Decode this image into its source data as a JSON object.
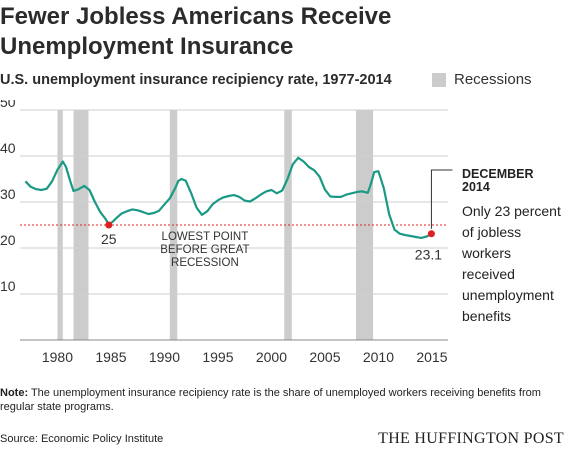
{
  "header": {
    "title": "Fewer Jobless Americans Receive Unemployment Insurance",
    "subtitle": "U.S. unemployment insurance recipiency rate, 1977-2014",
    "legend_label": "Recessions"
  },
  "chart_data": {
    "type": "line",
    "title": "Fewer Jobless Americans Receive Unemployment Insurance",
    "subtitle": "U.S. unemployment insurance recipiency rate, 1977-2014",
    "xlabel": "",
    "ylabel": "",
    "xlim": [
      1976.5,
      2016.5
    ],
    "ylim": [
      0,
      50
    ],
    "yticks": [
      "10",
      "20",
      "30",
      "40",
      "50"
    ],
    "xticks": [
      "1980",
      "1985",
      "1990",
      "1995",
      "2000",
      "2005",
      "2010",
      "2015"
    ],
    "grid": true,
    "reference_line": 25,
    "legend": [
      {
        "name": "Recessions",
        "color": "#cccccc"
      }
    ],
    "recessions": [
      {
        "start": 1980.0,
        "end": 1980.5
      },
      {
        "start": 1981.5,
        "end": 1982.9
      },
      {
        "start": 1990.5,
        "end": 1991.2
      },
      {
        "start": 2001.2,
        "end": 2001.9
      },
      {
        "start": 2007.9,
        "end": 2009.5
      }
    ],
    "series": [
      {
        "color": "#1a9a85",
        "x": [
          1977.0,
          1977.5,
          1978.0,
          1978.5,
          1979.0,
          1979.5,
          1980.0,
          1980.5,
          1980.8,
          1981.2,
          1981.5,
          1982.0,
          1982.5,
          1983.0,
          1983.5,
          1984.0,
          1984.5,
          1984.8,
          1985.2,
          1985.5,
          1986.0,
          1986.5,
          1987.0,
          1987.5,
          1988.0,
          1988.5,
          1989.0,
          1989.5,
          1990.0,
          1990.5,
          1991.0,
          1991.3,
          1991.6,
          1992.0,
          1992.5,
          1993.0,
          1993.5,
          1994.0,
          1994.5,
          1995.0,
          1995.5,
          1996.0,
          1996.5,
          1997.0,
          1997.5,
          1998.0,
          1998.5,
          1999.0,
          1999.5,
          2000.0,
          2000.5,
          2001.0,
          2001.5,
          2002.0,
          2002.5,
          2003.0,
          2003.5,
          2004.0,
          2004.5,
          2005.0,
          2005.5,
          2006.0,
          2006.5,
          2007.0,
          2007.5,
          2008.0,
          2008.5,
          2009.0,
          2009.3,
          2009.6,
          2010.0,
          2010.5,
          2011.0,
          2011.5,
          2012.0,
          2012.5,
          2013.0,
          2013.5,
          2014.0,
          2014.5,
          2015.0
        ],
        "values": [
          34.5,
          33.3,
          32.8,
          32.6,
          32.9,
          34.5,
          37.0,
          38.8,
          37.6,
          34.5,
          32.4,
          32.8,
          33.5,
          32.6,
          30.0,
          27.8,
          26.3,
          25.0,
          25.8,
          26.5,
          27.5,
          28.0,
          28.4,
          28.2,
          27.8,
          27.4,
          27.6,
          28.1,
          29.5,
          30.8,
          33.0,
          34.6,
          35.0,
          34.6,
          31.9,
          28.8,
          27.2,
          28.0,
          29.5,
          30.4,
          31.0,
          31.3,
          31.5,
          31.1,
          30.3,
          30.1,
          30.8,
          31.6,
          32.3,
          32.6,
          31.9,
          32.5,
          35.0,
          38.2,
          39.6,
          38.8,
          37.6,
          36.9,
          35.5,
          32.7,
          31.2,
          31.1,
          31.1,
          31.6,
          31.9,
          32.2,
          32.3,
          32.0,
          34.0,
          36.5,
          36.7,
          33.0,
          27.3,
          24.0,
          23.1,
          22.8,
          22.6,
          22.4,
          22.2,
          22.5,
          23.1
        ]
      }
    ],
    "annotations": [
      {
        "x": 1984.8,
        "y": 25,
        "text": "25"
      },
      {
        "x": 2014.95,
        "y": 23.1,
        "text": "23.1"
      },
      {
        "x": 1993.5,
        "y": 22,
        "lines": [
          "LOWEST POINT",
          "BEFORE GREAT",
          "RECESSION"
        ]
      },
      {
        "x": 2014.95,
        "y": 23.1,
        "heading": [
          "DECEMBER",
          "2014"
        ],
        "lines": [
          "Only 23 percent",
          "of jobless",
          "workers",
          "received",
          "unemployment",
          "benefits"
        ]
      }
    ]
  },
  "note": {
    "label": "Note:",
    "text": " The unemployment insurance recipiency rate is the share of unemployed workers receiving benefits from regular state programs."
  },
  "footer": {
    "source": "Source: Economic Policy Institute",
    "brand": "THE HUFFINGTON POST"
  },
  "colors": {
    "line": "#1a9a85",
    "recession": "#cccccc",
    "marker": "#e02020",
    "reference": "#e02020",
    "grid": "#cfcfcf",
    "axis_text": "#333333"
  }
}
